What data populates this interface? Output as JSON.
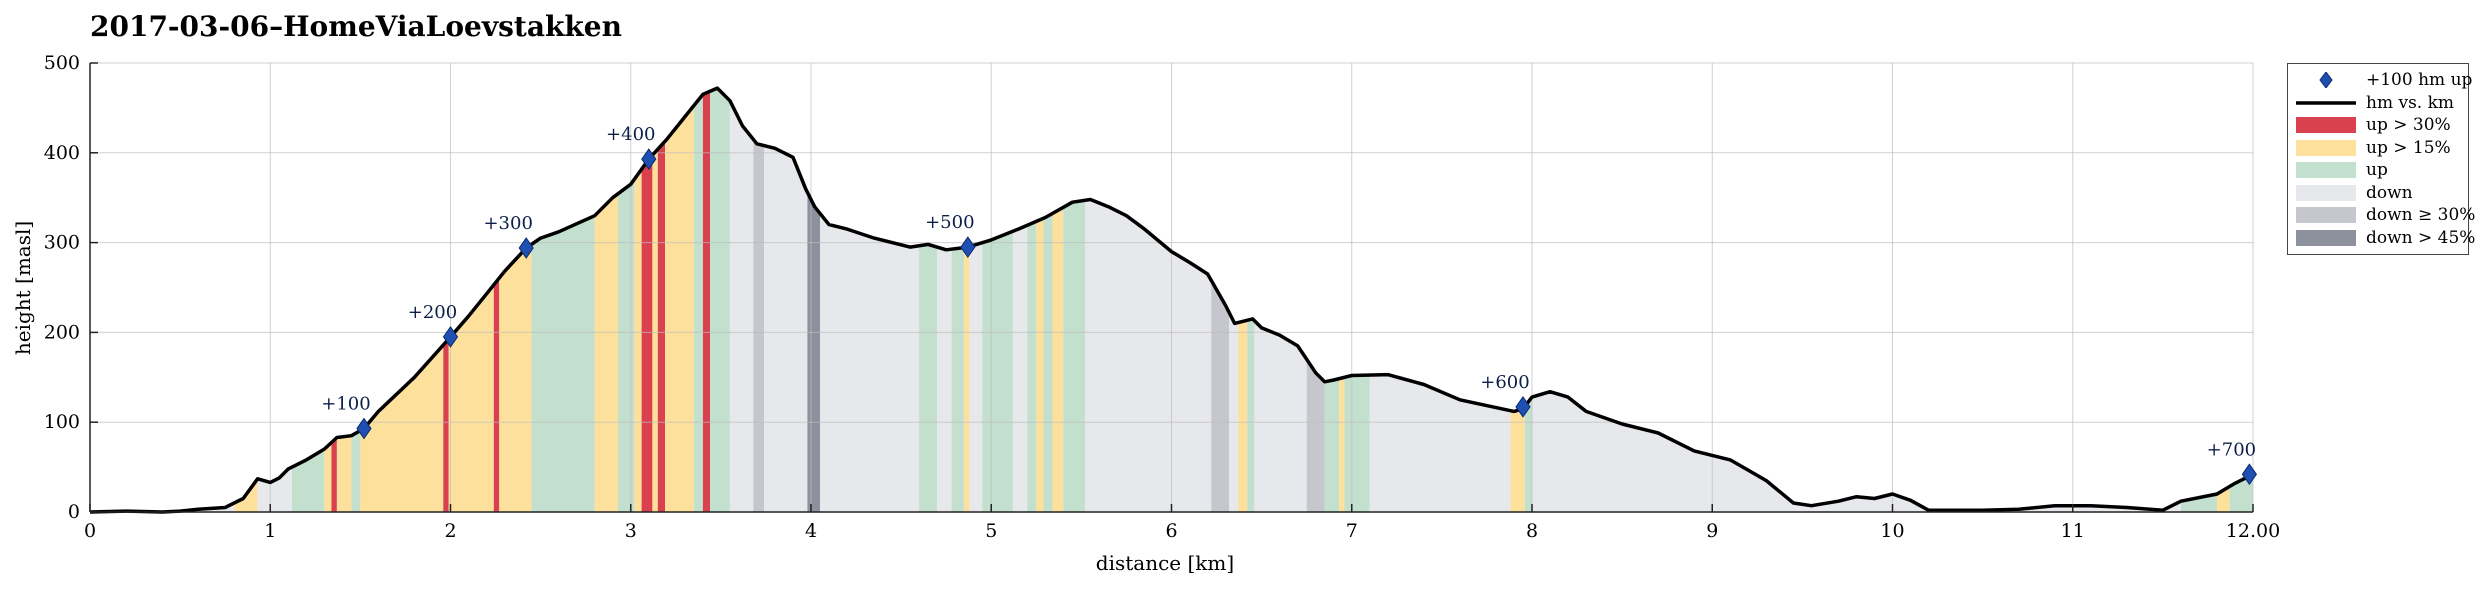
{
  "title": "2017-03-06–HomeViaLoevstakken",
  "chart_data": {
    "type": "area",
    "title": "2017-03-06–HomeViaLoevstakken",
    "xlabel": "distance [km]",
    "ylabel": "height [masl]",
    "xlim": [
      0,
      12.0
    ],
    "ylim": [
      0,
      500
    ],
    "xticks": [
      0,
      1,
      2,
      3,
      4,
      5,
      6,
      7,
      8,
      9,
      10,
      11,
      12
    ],
    "xtick_labels": [
      "0",
      "1",
      "2",
      "3",
      "4",
      "5",
      "6",
      "7",
      "8",
      "9",
      "10",
      "11",
      "12.00"
    ],
    "yticks": [
      0,
      100,
      200,
      300,
      400,
      500
    ],
    "grid": true,
    "legend_position": "outside-right",
    "colors": {
      "line": "#000000",
      "marker": "#1f4fb0",
      "up_gt_30": "#d9414e",
      "up_gt_15": "#fde09c",
      "up": "#c3dfcd",
      "down": "#e7e8eb",
      "down_ge_30": "#c6c7ce",
      "down_gt_45": "#8d919d"
    },
    "legend": [
      {
        "label": "+100 hm up",
        "symbol": "diamond",
        "color": "#1f4fb0"
      },
      {
        "label": "hm vs. km",
        "symbol": "line",
        "color": "#000000"
      },
      {
        "label": "up > 30%",
        "symbol": "patch",
        "color": "#d9414e"
      },
      {
        "label": "up > 15%",
        "symbol": "patch",
        "color": "#fde09c"
      },
      {
        "label": "up",
        "symbol": "patch",
        "color": "#c3dfcd"
      },
      {
        "label": "down",
        "symbol": "patch",
        "color": "#e7e8eb"
      },
      {
        "label": "down ≥ 30%",
        "symbol": "patch",
        "color": "#c6c7ce"
      },
      {
        "label": "down > 45%",
        "symbol": "patch",
        "color": "#8d919d"
      }
    ],
    "series": [
      {
        "name": "hm vs. km",
        "x": [
          0,
          0.2,
          0.4,
          0.5,
          0.6,
          0.75,
          0.85,
          0.93,
          1.0,
          1.05,
          1.1,
          1.2,
          1.3,
          1.37,
          1.45,
          1.52,
          1.6,
          1.8,
          2.0,
          2.1,
          2.2,
          2.3,
          2.42,
          2.5,
          2.6,
          2.8,
          2.9,
          3.0,
          3.1,
          3.2,
          3.3,
          3.4,
          3.48,
          3.55,
          3.62,
          3.7,
          3.8,
          3.9,
          3.97,
          4.02,
          4.1,
          4.2,
          4.35,
          4.55,
          4.65,
          4.75,
          4.87,
          5.0,
          5.15,
          5.3,
          5.45,
          5.55,
          5.65,
          5.75,
          5.85,
          6.0,
          6.1,
          6.2,
          6.3,
          6.35,
          6.45,
          6.5,
          6.6,
          6.7,
          6.8,
          6.85,
          6.9,
          7.0,
          7.2,
          7.4,
          7.6,
          7.9,
          7.95,
          8.0,
          8.1,
          8.2,
          8.3,
          8.5,
          8.7,
          8.9,
          9.1,
          9.3,
          9.45,
          9.55,
          9.7,
          9.8,
          9.9,
          10.0,
          10.1,
          10.2,
          10.35,
          10.5,
          10.7,
          10.9,
          11.1,
          11.3,
          11.5,
          11.6,
          11.8,
          11.9,
          12.0
        ],
        "y": [
          0,
          1,
          0,
          1,
          3,
          5,
          15,
          37,
          33,
          38,
          48,
          58,
          70,
          83,
          85,
          93,
          112,
          150,
          195,
          218,
          243,
          268,
          294,
          305,
          312,
          330,
          350,
          365,
          393,
          415,
          440,
          465,
          472,
          458,
          430,
          410,
          405,
          395,
          360,
          340,
          320,
          315,
          305,
          295,
          298,
          292,
          295,
          303,
          315,
          328,
          345,
          348,
          340,
          330,
          315,
          290,
          278,
          265,
          230,
          210,
          215,
          205,
          197,
          185,
          155,
          145,
          147,
          152,
          153,
          142,
          125,
          112,
          115,
          128,
          134,
          128,
          112,
          98,
          88,
          68,
          58,
          35,
          10,
          7,
          12,
          17,
          15,
          20,
          13,
          2,
          2,
          2,
          3,
          7,
          7,
          5,
          2,
          12,
          20,
          32,
          42
        ]
      },
      {
        "name": "+100 hm up",
        "x": [
          1.52,
          2.0,
          2.42,
          3.1,
          4.87,
          7.95,
          11.98
        ],
        "y": [
          93,
          195,
          294,
          393,
          295,
          117,
          42
        ],
        "labels": [
          "+100",
          "+200",
          "+300",
          "+400",
          "+500",
          "+600",
          "+700"
        ]
      }
    ],
    "bands": {
      "note_categories": [
        "up > 30%",
        "up > 15%",
        "up",
        "down",
        "down ≥ 30%",
        "down > 45%"
      ],
      "segments": [
        {
          "from": 0.0,
          "to": 0.8,
          "cat": "down"
        },
        {
          "from": 0.8,
          "to": 0.93,
          "cat": "up > 15%"
        },
        {
          "from": 0.93,
          "to": 1.12,
          "cat": "down"
        },
        {
          "from": 1.12,
          "to": 1.3,
          "cat": "up"
        },
        {
          "from": 1.3,
          "to": 1.34,
          "cat": "up > 15%"
        },
        {
          "from": 1.34,
          "to": 1.37,
          "cat": "up > 30%"
        },
        {
          "from": 1.37,
          "to": 1.45,
          "cat": "up > 15%"
        },
        {
          "from": 1.45,
          "to": 1.5,
          "cat": "up"
        },
        {
          "from": 1.5,
          "to": 1.96,
          "cat": "up > 15%"
        },
        {
          "from": 1.96,
          "to": 1.99,
          "cat": "up > 30%"
        },
        {
          "from": 1.99,
          "to": 2.24,
          "cat": "up > 15%"
        },
        {
          "from": 2.24,
          "to": 2.27,
          "cat": "up > 30%"
        },
        {
          "from": 2.27,
          "to": 2.45,
          "cat": "up > 15%"
        },
        {
          "from": 2.45,
          "to": 2.8,
          "cat": "up"
        },
        {
          "from": 2.8,
          "to": 2.93,
          "cat": "up > 15%"
        },
        {
          "from": 2.93,
          "to": 3.02,
          "cat": "up"
        },
        {
          "from": 3.02,
          "to": 3.06,
          "cat": "up > 15%"
        },
        {
          "from": 3.06,
          "to": 3.12,
          "cat": "up > 30%"
        },
        {
          "from": 3.12,
          "to": 3.15,
          "cat": "up > 15%"
        },
        {
          "from": 3.15,
          "to": 3.19,
          "cat": "up > 30%"
        },
        {
          "from": 3.19,
          "to": 3.35,
          "cat": "up > 15%"
        },
        {
          "from": 3.35,
          "to": 3.4,
          "cat": "up"
        },
        {
          "from": 3.4,
          "to": 3.44,
          "cat": "up > 30%"
        },
        {
          "from": 3.44,
          "to": 3.55,
          "cat": "up"
        },
        {
          "from": 3.55,
          "to": 3.68,
          "cat": "down"
        },
        {
          "from": 3.68,
          "to": 3.74,
          "cat": "down ≥ 30%"
        },
        {
          "from": 3.74,
          "to": 3.98,
          "cat": "down"
        },
        {
          "from": 3.98,
          "to": 4.05,
          "cat": "down > 45%"
        },
        {
          "from": 4.05,
          "to": 4.6,
          "cat": "down"
        },
        {
          "from": 4.6,
          "to": 4.7,
          "cat": "up"
        },
        {
          "from": 4.7,
          "to": 4.78,
          "cat": "down"
        },
        {
          "from": 4.78,
          "to": 4.85,
          "cat": "up"
        },
        {
          "from": 4.85,
          "to": 4.88,
          "cat": "up > 15%"
        },
        {
          "from": 4.88,
          "to": 4.95,
          "cat": "down"
        },
        {
          "from": 4.95,
          "to": 5.12,
          "cat": "up"
        },
        {
          "from": 5.12,
          "to": 5.2,
          "cat": "down"
        },
        {
          "from": 5.2,
          "to": 5.25,
          "cat": "up"
        },
        {
          "from": 5.25,
          "to": 5.29,
          "cat": "up > 15%"
        },
        {
          "from": 5.29,
          "to": 5.34,
          "cat": "up"
        },
        {
          "from": 5.34,
          "to": 5.4,
          "cat": "up > 15%"
        },
        {
          "from": 5.4,
          "to": 5.52,
          "cat": "up"
        },
        {
          "from": 5.52,
          "to": 6.22,
          "cat": "down"
        },
        {
          "from": 6.22,
          "to": 6.32,
          "cat": "down ≥ 30%"
        },
        {
          "from": 6.32,
          "to": 6.37,
          "cat": "down"
        },
        {
          "from": 6.37,
          "to": 6.42,
          "cat": "up > 15%"
        },
        {
          "from": 6.42,
          "to": 6.46,
          "cat": "up"
        },
        {
          "from": 6.46,
          "to": 6.75,
          "cat": "down"
        },
        {
          "from": 6.75,
          "to": 6.85,
          "cat": "down ≥ 30%"
        },
        {
          "from": 6.85,
          "to": 6.93,
          "cat": "up"
        },
        {
          "from": 6.93,
          "to": 6.96,
          "cat": "up > 15%"
        },
        {
          "from": 6.96,
          "to": 7.1,
          "cat": "up"
        },
        {
          "from": 7.1,
          "to": 7.88,
          "cat": "down"
        },
        {
          "from": 7.88,
          "to": 7.96,
          "cat": "up > 15%"
        },
        {
          "from": 7.96,
          "to": 8.0,
          "cat": "up"
        },
        {
          "from": 8.0,
          "to": 11.6,
          "cat": "down"
        },
        {
          "from": 11.6,
          "to": 11.8,
          "cat": "up"
        },
        {
          "from": 11.8,
          "to": 11.87,
          "cat": "up > 15%"
        },
        {
          "from": 11.87,
          "to": 12.0,
          "cat": "up"
        }
      ]
    }
  }
}
